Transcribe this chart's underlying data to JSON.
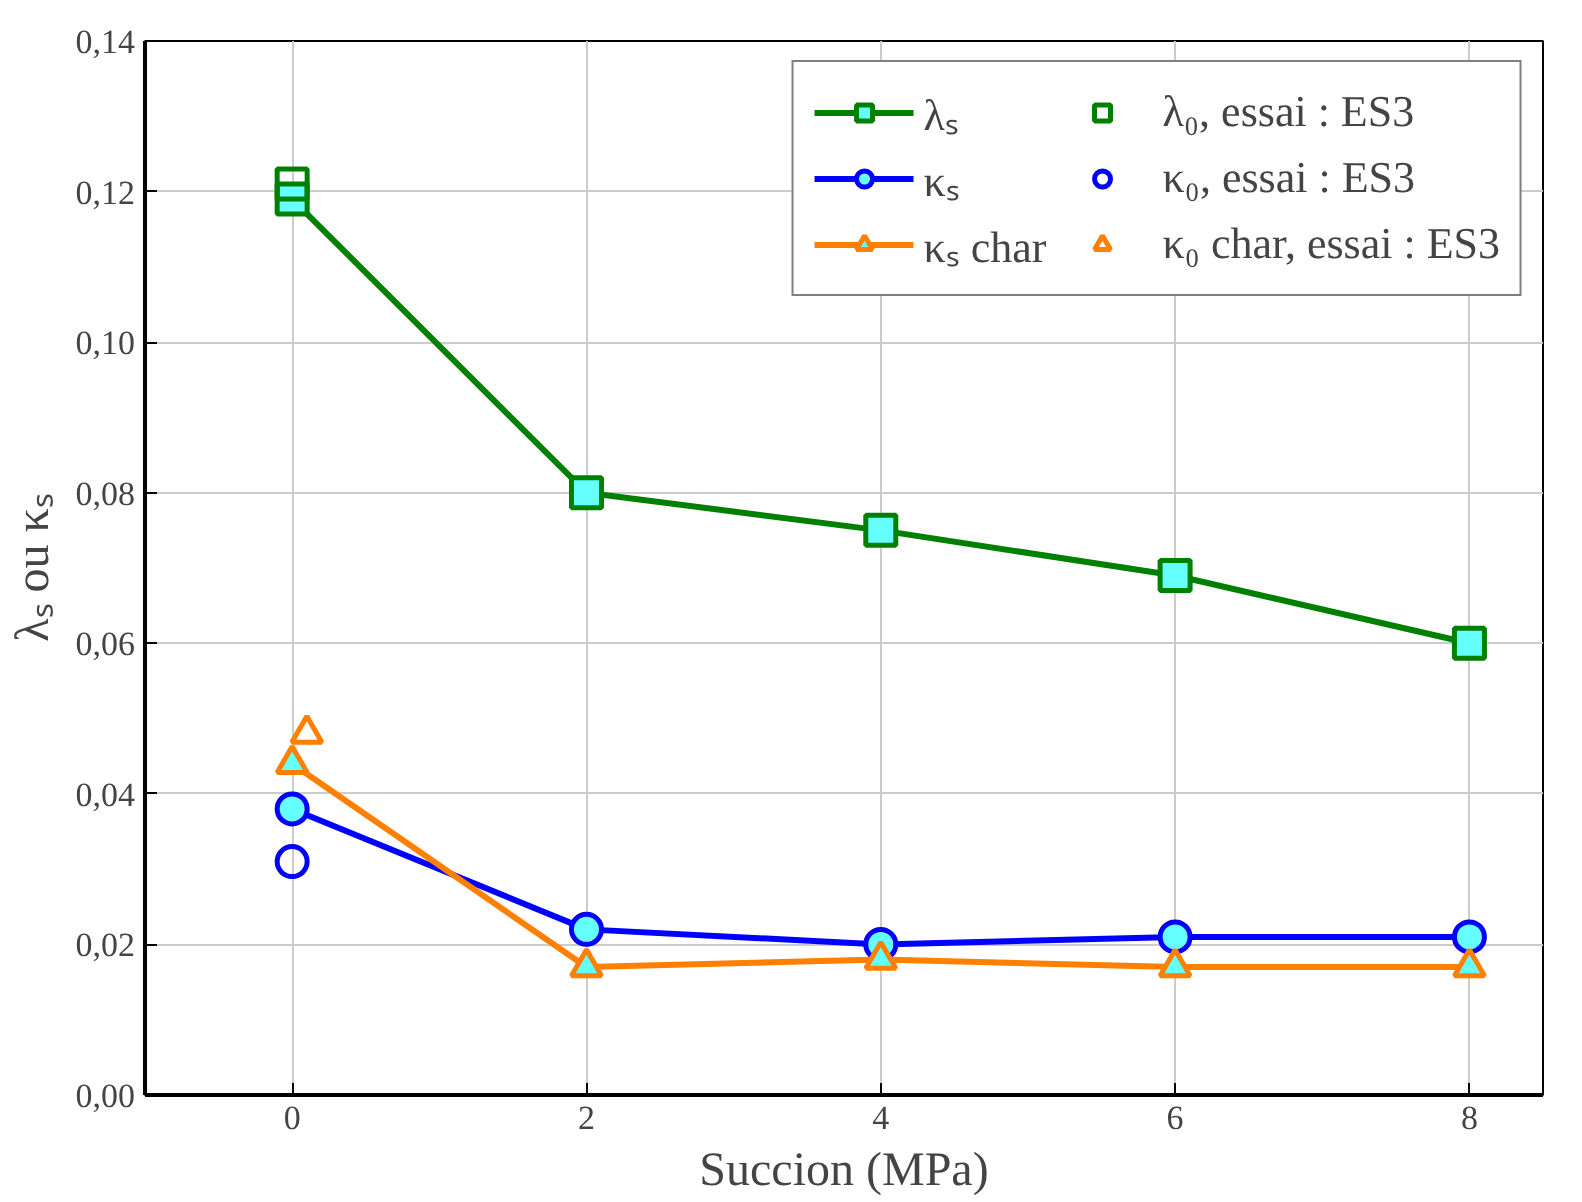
{
  "chart_data": {
    "type": "line",
    "xlabel": "Succion (MPa)",
    "ylabel": "λₛ ou κₛ",
    "xlim": [
      -1,
      8.5
    ],
    "xticks": [
      0,
      2,
      4,
      6,
      8
    ],
    "ylim": [
      0,
      0.14
    ],
    "yticks": [
      {
        "value": 0,
        "label": "0,00"
      },
      {
        "value": 0.02,
        "label": "0,02"
      },
      {
        "value": 0.04,
        "label": "0,04"
      },
      {
        "value": 0.06,
        "label": "0,06"
      },
      {
        "value": 0.08,
        "label": "0,08"
      },
      {
        "value": 0.1,
        "label": "0,10"
      },
      {
        "value": 0.12,
        "label": "0,12"
      },
      {
        "value": 0.14,
        "label": "0,14"
      }
    ],
    "grid": true,
    "legend": "top right",
    "line_style": "solid",
    "series": [
      {
        "name": "λₛ",
        "marker": "square",
        "color": "#008000",
        "x": [
          0,
          2,
          4,
          6,
          8
        ],
        "values": [
          0.119,
          0.08,
          0.075,
          0.069,
          0.06
        ]
      },
      {
        "name": "κₛ",
        "marker": "circle",
        "color": "#0000ff",
        "x": [
          0,
          2,
          4,
          6,
          8
        ],
        "values": [
          0.038,
          0.022,
          0.02,
          0.021,
          0.021
        ]
      },
      {
        "name": "κₛ char",
        "marker": "triangle",
        "color": "#ff8000",
        "x": [
          0,
          2,
          4,
          6,
          8
        ],
        "values": [
          0.044,
          0.017,
          0.018,
          0.017,
          0.017
        ]
      },
      {
        "name": "λ₀, essai : ES3",
        "type": "scatter",
        "marker": "square",
        "color": "#008000",
        "x": [
          0
        ],
        "values": [
          0.121
        ]
      },
      {
        "name": "κ₀, essai : ES3",
        "type": "scatter",
        "marker": "circle",
        "color": "#0000ff",
        "x": [
          0
        ],
        "values": [
          0.031
        ]
      },
      {
        "name": "κ₀ char, essai : ES3",
        "type": "scatter",
        "marker": "triangle",
        "color": "#ff8000",
        "x": [
          0.1
        ],
        "values": [
          0.048
        ]
      }
    ]
  }
}
